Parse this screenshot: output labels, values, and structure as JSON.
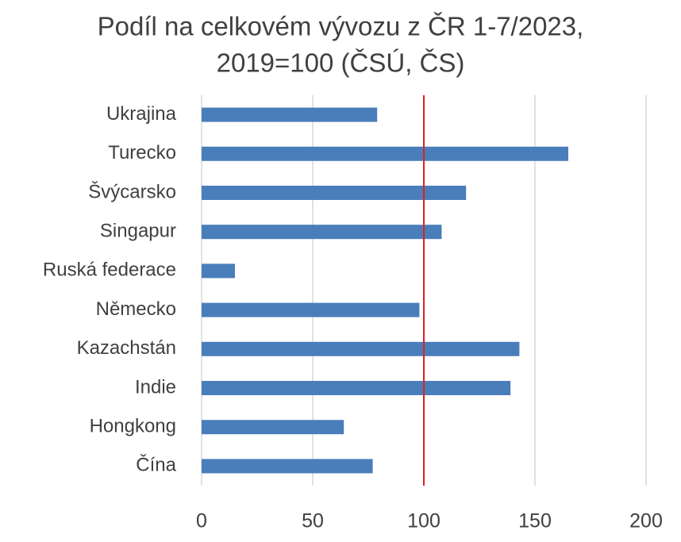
{
  "chart_data": {
    "type": "bar",
    "orientation": "horizontal",
    "title": [
      "Podíl na celkovém vývozu z ČR 1-7/2023,",
      "2019=100 (ČSÚ, ČS)"
    ],
    "categories": [
      "Ukrajina",
      "Turecko",
      "Švýcarsko",
      "Singapur",
      "Ruská federace",
      "Německo",
      "Kazachstán",
      "Indie",
      "Hongkong",
      "Čína"
    ],
    "values": [
      79,
      165,
      119,
      108,
      15,
      98,
      143,
      139,
      64,
      77
    ],
    "color": "#4a7ebb",
    "xlim": [
      0,
      200
    ],
    "xticks": [
      0,
      50,
      100,
      150,
      200
    ],
    "grid": true,
    "reference_line": {
      "value": 100,
      "color": "#e02020"
    }
  }
}
